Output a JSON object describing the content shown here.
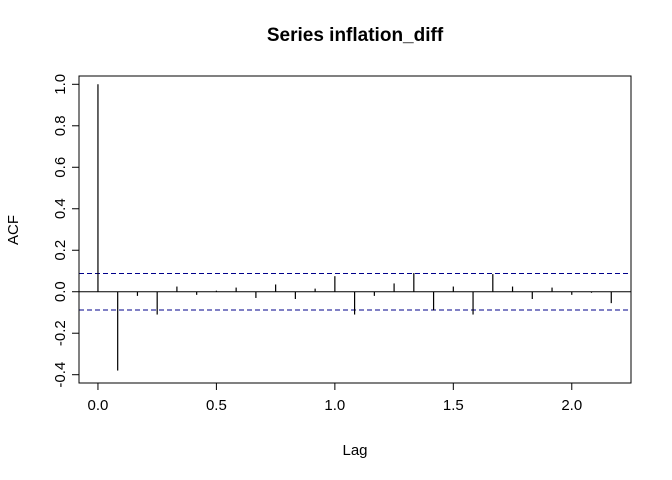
{
  "chart_data": {
    "type": "bar",
    "title": "Series  inflation_diff",
    "xlabel": "Lag",
    "ylabel": "ACF",
    "xlim": [
      -0.08,
      2.25
    ],
    "ylim": [
      -0.44,
      1.04
    ],
    "x_ticks": [
      {
        "value": 0.0,
        "label": "0.0"
      },
      {
        "value": 0.5,
        "label": "0.5"
      },
      {
        "value": 1.0,
        "label": "1.0"
      },
      {
        "value": 1.5,
        "label": "1.5"
      },
      {
        "value": 2.0,
        "label": "2.0"
      }
    ],
    "y_ticks": [
      {
        "value": -0.4,
        "label": "-0.4"
      },
      {
        "value": -0.2,
        "label": "-0.2"
      },
      {
        "value": 0.0,
        "label": "0.0"
      },
      {
        "value": 0.2,
        "label": "0.2"
      },
      {
        "value": 0.4,
        "label": "0.4"
      },
      {
        "value": 0.6,
        "label": "0.6"
      },
      {
        "value": 0.8,
        "label": "0.8"
      },
      {
        "value": 1.0,
        "label": "1.0"
      }
    ],
    "confidence_bound": 0.088,
    "lags": [
      0.0,
      0.0833,
      0.1667,
      0.25,
      0.3333,
      0.4167,
      0.5,
      0.5833,
      0.6667,
      0.75,
      0.8333,
      0.9167,
      1.0,
      1.0833,
      1.1667,
      1.25,
      1.3333,
      1.4167,
      1.5,
      1.5833,
      1.6667,
      1.75,
      1.8333,
      1.9167,
      2.0,
      2.0833,
      2.1667
    ],
    "acf": [
      1.0,
      -0.38,
      -0.02,
      -0.11,
      0.025,
      -0.015,
      0.005,
      0.02,
      -0.03,
      0.035,
      -0.035,
      0.015,
      0.075,
      -0.11,
      -0.02,
      0.04,
      0.09,
      -0.09,
      0.025,
      -0.11,
      0.085,
      0.025,
      -0.035,
      0.02,
      -0.015,
      -0.005,
      -0.055
    ],
    "colors": {
      "bars": "#000000",
      "bounds": "#00008B",
      "zero_line": "#000000"
    },
    "grid": false
  }
}
